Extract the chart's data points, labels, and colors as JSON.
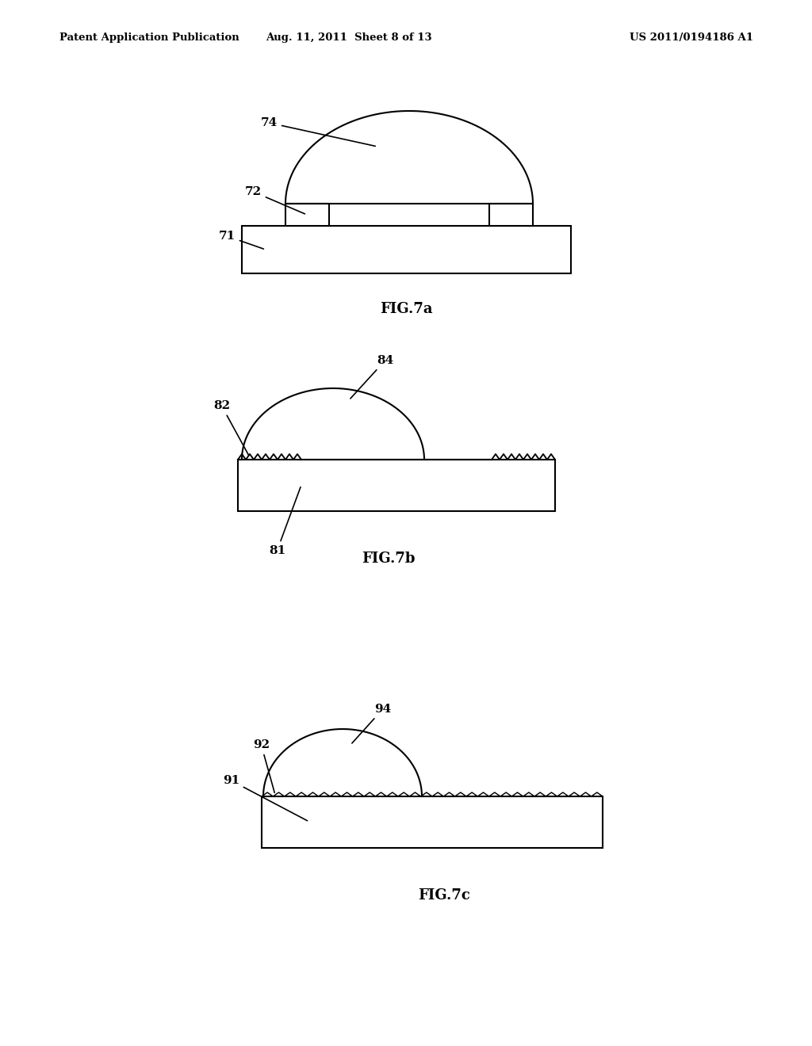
{
  "bg_color": "#ffffff",
  "line_color": "#000000",
  "header_left": "Patent Application Publication",
  "header_mid": "Aug. 11, 2011  Sheet 8 of 13",
  "header_right": "US 2011/0194186 A1",
  "fig7a_label": "FIG.7a",
  "fig7b_label": "FIG.7b",
  "fig7c_label": "FIG.7c"
}
